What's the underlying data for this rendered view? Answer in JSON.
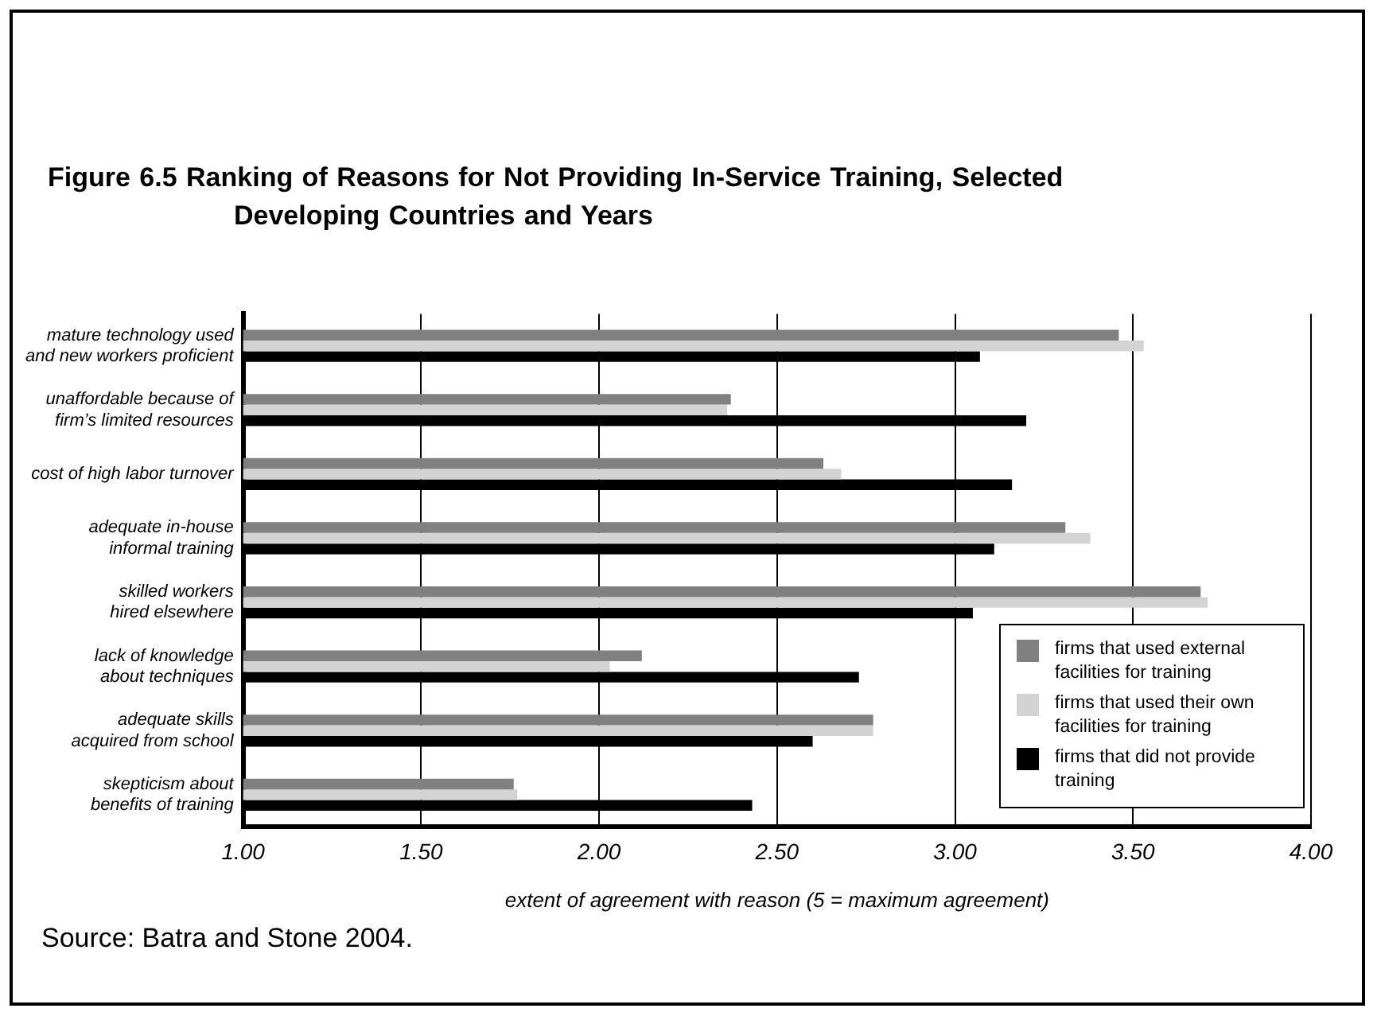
{
  "chart_data": {
    "type": "bar",
    "orientation": "horizontal",
    "title": "Figure 6.5 Ranking of Reasons for Not Providing In-Service Training, Selected Developing Countries and Years",
    "xlabel": "extent of agreement with reason (5 = maximum agreement)",
    "categories": [
      "mature technology used\nand new workers proficient",
      "unaffordable because of\nfirm’s limited resources",
      "cost of high labor turnover",
      "adequate in-house\ninformal training",
      "skilled workers\nhired elsewhere",
      "lack of knowledge\nabout techniques",
      "adequate skills\nacquired from school",
      "skepticism about\nbenefits of training"
    ],
    "series": [
      {
        "name": "firms that used external facilities for training",
        "color": "#808080",
        "values": [
          3.46,
          2.37,
          2.63,
          3.31,
          3.69,
          2.12,
          2.77,
          1.76
        ]
      },
      {
        "name": "firms that used their own facilities for training",
        "color": "#d3d3d3",
        "values": [
          3.53,
          2.36,
          2.68,
          3.38,
          3.71,
          2.03,
          2.77,
          1.77
        ]
      },
      {
        "name": "firms that did not provide training",
        "color": "#000000",
        "values": [
          3.07,
          3.2,
          3.16,
          3.11,
          3.05,
          2.73,
          2.6,
          2.43
        ]
      }
    ],
    "xlim": [
      1,
      4
    ],
    "xticks": [
      {
        "value": 1,
        "label": "1.00"
      },
      {
        "value": 1.5,
        "label": "1.50"
      },
      {
        "value": 2,
        "label": "2.00"
      },
      {
        "value": 2.5,
        "label": "2.50"
      },
      {
        "value": 3,
        "label": "3.00"
      },
      {
        "value": 3.5,
        "label": "3.50"
      },
      {
        "value": 4,
        "label": "4.00"
      }
    ],
    "grid": "x",
    "legend": "bottom right",
    "annotations": [
      "Source: Batra and Stone 2004."
    ]
  }
}
